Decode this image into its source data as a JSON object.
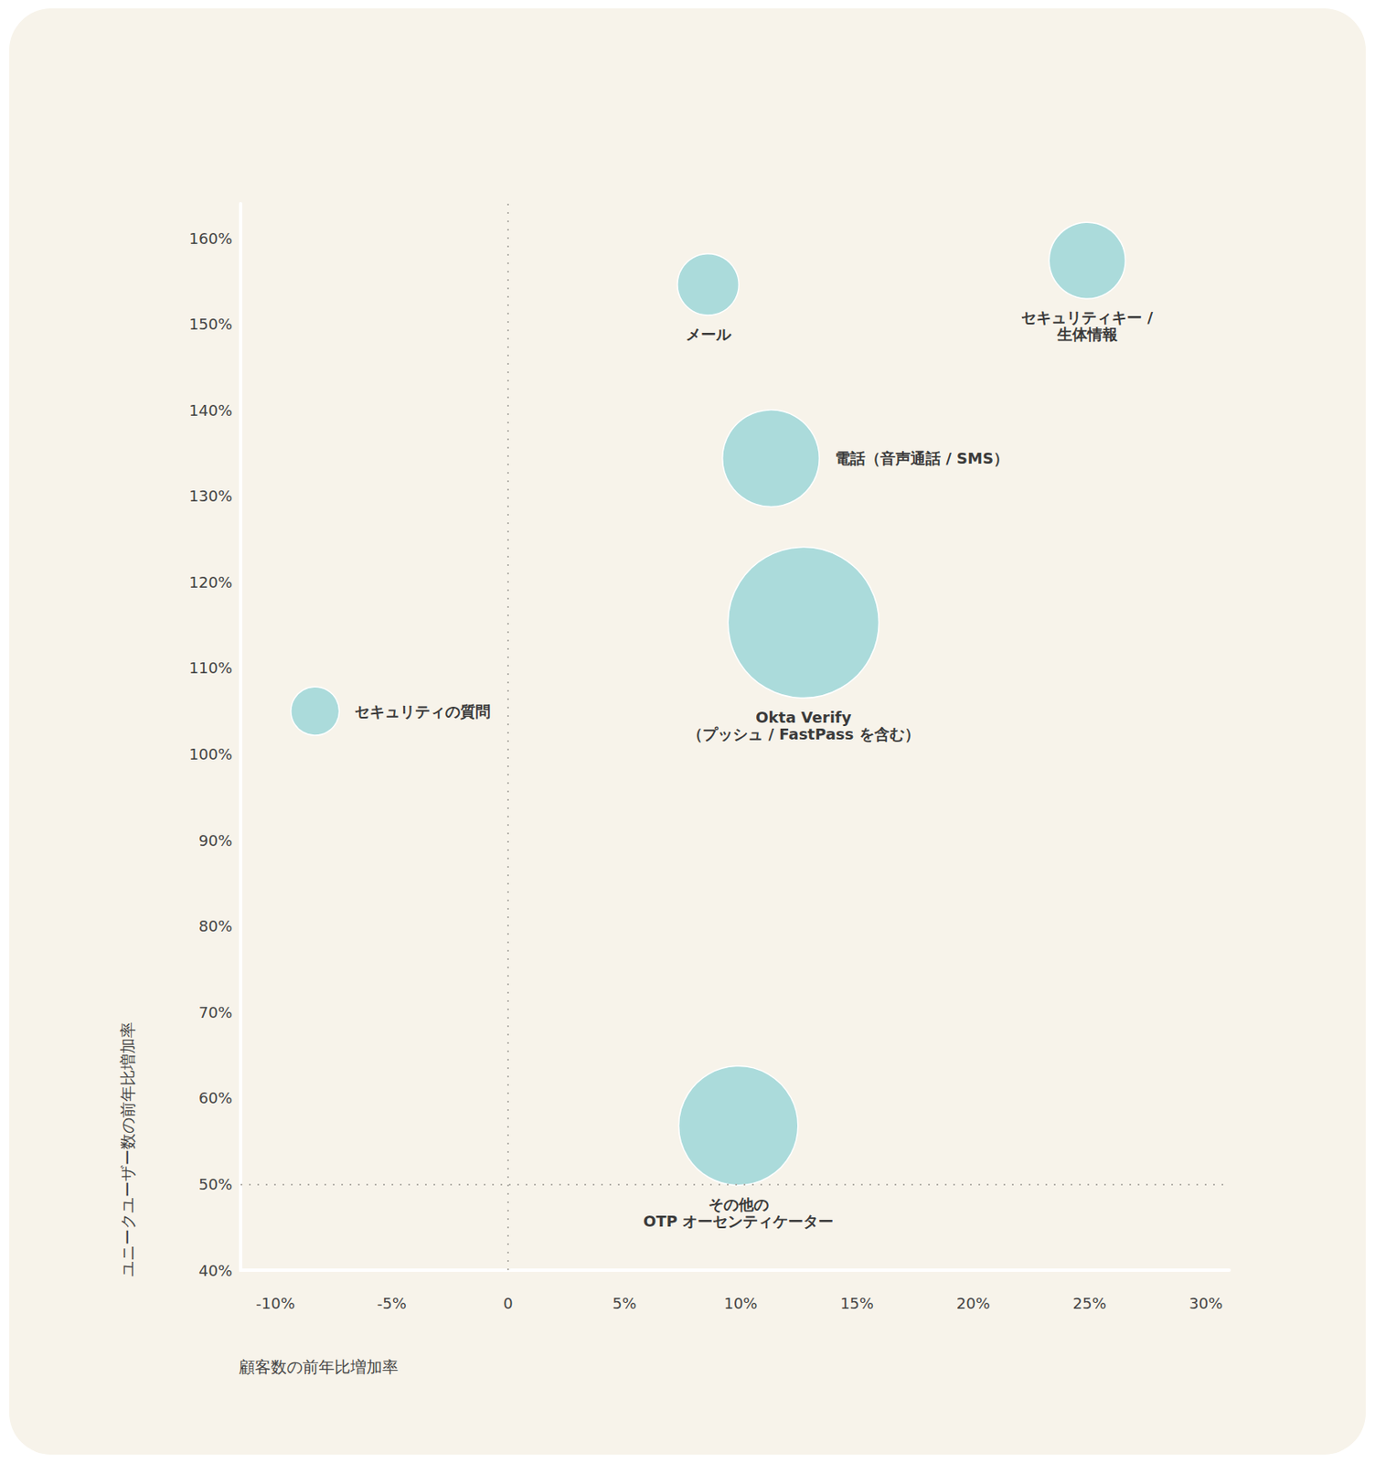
{
  "chart_data": {
    "type": "scatter",
    "x_label": "顧客数の前年比増加率",
    "y_label": "ユニークユーザー数の前年比増加率",
    "labels": [
      "メール",
      "セキュリティキー /\n生体情報",
      "電話（音声通話 / SMS）",
      "Okta Verify\n（プッシュ / FastPass を含む）",
      "セキュリティの質問",
      "その他の\nOTP オーセンティケーター"
    ],
    "x": [
      8.6,
      24.9,
      11.3,
      12.7,
      -8.3,
      9.9
    ],
    "values": [
      154.6,
      157.4,
      134.4,
      115.3,
      105.0,
      56.8
    ],
    "sizes": [
      16.6,
      25.6,
      41.2,
      100,
      10.3,
      62.4
    ],
    "color": "#abdbdb",
    "xlim": [
      -11.5,
      31
    ],
    "ylim": [
      40,
      164
    ],
    "xticks": [
      {
        "value": -10,
        "label": "-10%"
      },
      {
        "value": -5,
        "label": "-5%"
      },
      0,
      {
        "value": 5,
        "label": "5%"
      },
      {
        "value": 10,
        "label": "10%"
      },
      {
        "value": 15,
        "label": "15%"
      },
      {
        "value": 20,
        "label": "20%"
      },
      {
        "value": 25,
        "label": "25%"
      },
      {
        "value": 30,
        "label": "30%"
      }
    ],
    "yticks": [
      {
        "value": 40,
        "label": "40%"
      },
      {
        "value": 50,
        "label": "50%"
      },
      {
        "value": 60,
        "label": "60%"
      },
      {
        "value": 70,
        "label": "70%"
      },
      {
        "value": 80,
        "label": "80%"
      },
      {
        "value": 90,
        "label": "90%"
      },
      {
        "value": 100,
        "label": "100%"
      },
      {
        "value": 110,
        "label": "110%"
      },
      {
        "value": 120,
        "label": "120%"
      },
      {
        "value": 130,
        "label": "130%"
      },
      {
        "value": 140,
        "label": "140%"
      },
      {
        "value": 150,
        "label": "150%"
      },
      {
        "value": 160,
        "label": "160%"
      }
    ],
    "ref_lines": {
      "x": 0,
      "y": 50
    },
    "grid": false
  }
}
